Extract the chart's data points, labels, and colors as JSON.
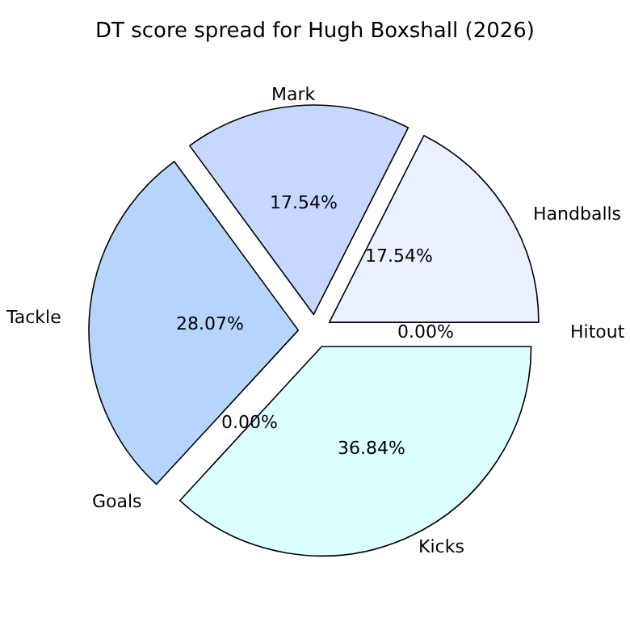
{
  "chart_data": {
    "type": "pie",
    "title": "DT score spread for Hugh Boxshall (2026)",
    "categories": [
      "Handballs",
      "Mark",
      "Tackle",
      "Goals",
      "Kicks",
      "Hitout"
    ],
    "values": [
      17.54,
      17.54,
      28.07,
      0,
      36.84,
      0
    ],
    "value_labels": [
      "17.54%",
      "17.54%",
      "28.07%",
      "0.00%",
      "36.84%",
      "0.00%"
    ],
    "colors": [
      "#eaf0ff",
      "#c6d8ff",
      "#b5d5ff",
      "#c8e6ff",
      "#dcffff",
      "#e0e8ff"
    ]
  }
}
